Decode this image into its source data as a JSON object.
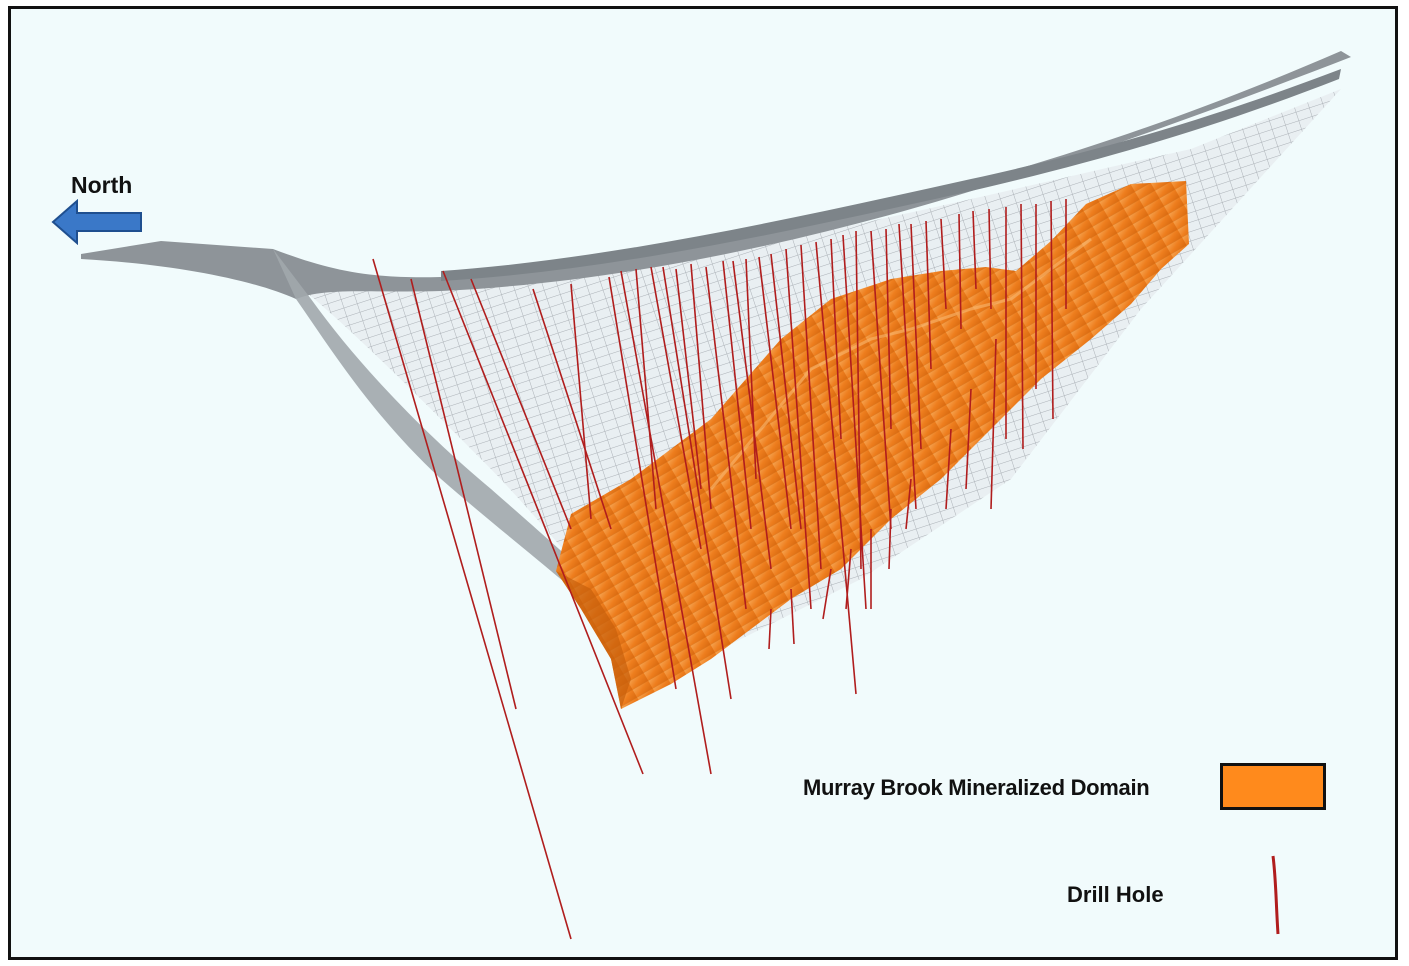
{
  "compass": {
    "label": "North",
    "arrow_icon": "left-arrow-icon",
    "arrow_color": "#3a78c8"
  },
  "legend": {
    "domain": {
      "label": "Murray Brook Mineralized Domain",
      "color": "#ff8a1c"
    },
    "drill_hole": {
      "label": "Drill Hole",
      "color": "#b01d1d"
    }
  },
  "colors": {
    "background": "#f1fbfc",
    "pit_surface": "#8e9499",
    "pit_mesh": "#9aa0a6",
    "ore_body": "#f07f1e",
    "drill_hole": "#b01d1d"
  }
}
